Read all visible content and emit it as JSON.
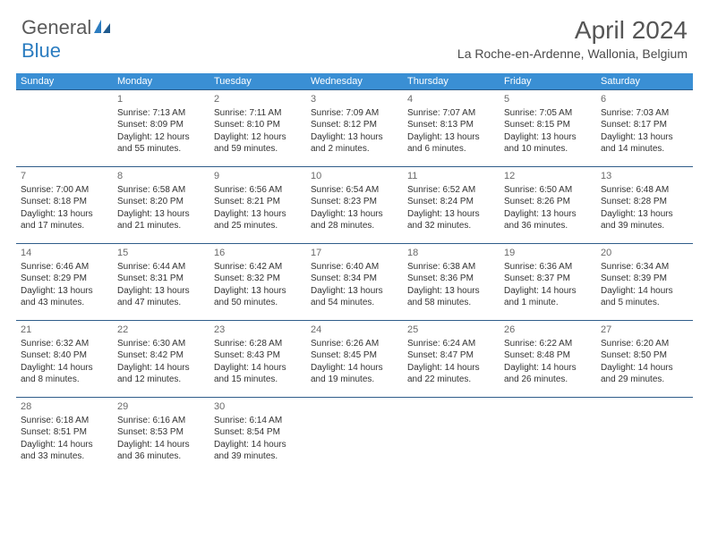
{
  "logo": {
    "text1": "General",
    "text2": "Blue"
  },
  "title": {
    "month": "April 2024",
    "location": "La Roche-en-Ardenne, Wallonia, Belgium"
  },
  "colors": {
    "header_bg": "#3a8fd4",
    "header_text": "#ffffff",
    "cell_border": "#2f5d8a",
    "body_text": "#333333",
    "daynum_text": "#6a6a6a",
    "title_text": "#555555",
    "logo_gray": "#5a5a5a",
    "logo_blue": "#2b7cc0",
    "background": "#ffffff"
  },
  "typography": {
    "title_fontsize": 28,
    "location_fontsize": 14,
    "header_fontsize": 11,
    "daynum_fontsize": 11,
    "cell_fontsize": 10,
    "logo_fontsize": 22
  },
  "days_of_week": [
    "Sunday",
    "Monday",
    "Tuesday",
    "Wednesday",
    "Thursday",
    "Friday",
    "Saturday"
  ],
  "weeks": [
    [
      null,
      {
        "n": "1",
        "sunrise": "Sunrise: 7:13 AM",
        "sunset": "Sunset: 8:09 PM",
        "day1": "Daylight: 12 hours",
        "day2": "and 55 minutes."
      },
      {
        "n": "2",
        "sunrise": "Sunrise: 7:11 AM",
        "sunset": "Sunset: 8:10 PM",
        "day1": "Daylight: 12 hours",
        "day2": "and 59 minutes."
      },
      {
        "n": "3",
        "sunrise": "Sunrise: 7:09 AM",
        "sunset": "Sunset: 8:12 PM",
        "day1": "Daylight: 13 hours",
        "day2": "and 2 minutes."
      },
      {
        "n": "4",
        "sunrise": "Sunrise: 7:07 AM",
        "sunset": "Sunset: 8:13 PM",
        "day1": "Daylight: 13 hours",
        "day2": "and 6 minutes."
      },
      {
        "n": "5",
        "sunrise": "Sunrise: 7:05 AM",
        "sunset": "Sunset: 8:15 PM",
        "day1": "Daylight: 13 hours",
        "day2": "and 10 minutes."
      },
      {
        "n": "6",
        "sunrise": "Sunrise: 7:03 AM",
        "sunset": "Sunset: 8:17 PM",
        "day1": "Daylight: 13 hours",
        "day2": "and 14 minutes."
      }
    ],
    [
      {
        "n": "7",
        "sunrise": "Sunrise: 7:00 AM",
        "sunset": "Sunset: 8:18 PM",
        "day1": "Daylight: 13 hours",
        "day2": "and 17 minutes."
      },
      {
        "n": "8",
        "sunrise": "Sunrise: 6:58 AM",
        "sunset": "Sunset: 8:20 PM",
        "day1": "Daylight: 13 hours",
        "day2": "and 21 minutes."
      },
      {
        "n": "9",
        "sunrise": "Sunrise: 6:56 AM",
        "sunset": "Sunset: 8:21 PM",
        "day1": "Daylight: 13 hours",
        "day2": "and 25 minutes."
      },
      {
        "n": "10",
        "sunrise": "Sunrise: 6:54 AM",
        "sunset": "Sunset: 8:23 PM",
        "day1": "Daylight: 13 hours",
        "day2": "and 28 minutes."
      },
      {
        "n": "11",
        "sunrise": "Sunrise: 6:52 AM",
        "sunset": "Sunset: 8:24 PM",
        "day1": "Daylight: 13 hours",
        "day2": "and 32 minutes."
      },
      {
        "n": "12",
        "sunrise": "Sunrise: 6:50 AM",
        "sunset": "Sunset: 8:26 PM",
        "day1": "Daylight: 13 hours",
        "day2": "and 36 minutes."
      },
      {
        "n": "13",
        "sunrise": "Sunrise: 6:48 AM",
        "sunset": "Sunset: 8:28 PM",
        "day1": "Daylight: 13 hours",
        "day2": "and 39 minutes."
      }
    ],
    [
      {
        "n": "14",
        "sunrise": "Sunrise: 6:46 AM",
        "sunset": "Sunset: 8:29 PM",
        "day1": "Daylight: 13 hours",
        "day2": "and 43 minutes."
      },
      {
        "n": "15",
        "sunrise": "Sunrise: 6:44 AM",
        "sunset": "Sunset: 8:31 PM",
        "day1": "Daylight: 13 hours",
        "day2": "and 47 minutes."
      },
      {
        "n": "16",
        "sunrise": "Sunrise: 6:42 AM",
        "sunset": "Sunset: 8:32 PM",
        "day1": "Daylight: 13 hours",
        "day2": "and 50 minutes."
      },
      {
        "n": "17",
        "sunrise": "Sunrise: 6:40 AM",
        "sunset": "Sunset: 8:34 PM",
        "day1": "Daylight: 13 hours",
        "day2": "and 54 minutes."
      },
      {
        "n": "18",
        "sunrise": "Sunrise: 6:38 AM",
        "sunset": "Sunset: 8:36 PM",
        "day1": "Daylight: 13 hours",
        "day2": "and 58 minutes."
      },
      {
        "n": "19",
        "sunrise": "Sunrise: 6:36 AM",
        "sunset": "Sunset: 8:37 PM",
        "day1": "Daylight: 14 hours",
        "day2": "and 1 minute."
      },
      {
        "n": "20",
        "sunrise": "Sunrise: 6:34 AM",
        "sunset": "Sunset: 8:39 PM",
        "day1": "Daylight: 14 hours",
        "day2": "and 5 minutes."
      }
    ],
    [
      {
        "n": "21",
        "sunrise": "Sunrise: 6:32 AM",
        "sunset": "Sunset: 8:40 PM",
        "day1": "Daylight: 14 hours",
        "day2": "and 8 minutes."
      },
      {
        "n": "22",
        "sunrise": "Sunrise: 6:30 AM",
        "sunset": "Sunset: 8:42 PM",
        "day1": "Daylight: 14 hours",
        "day2": "and 12 minutes."
      },
      {
        "n": "23",
        "sunrise": "Sunrise: 6:28 AM",
        "sunset": "Sunset: 8:43 PM",
        "day1": "Daylight: 14 hours",
        "day2": "and 15 minutes."
      },
      {
        "n": "24",
        "sunrise": "Sunrise: 6:26 AM",
        "sunset": "Sunset: 8:45 PM",
        "day1": "Daylight: 14 hours",
        "day2": "and 19 minutes."
      },
      {
        "n": "25",
        "sunrise": "Sunrise: 6:24 AM",
        "sunset": "Sunset: 8:47 PM",
        "day1": "Daylight: 14 hours",
        "day2": "and 22 minutes."
      },
      {
        "n": "26",
        "sunrise": "Sunrise: 6:22 AM",
        "sunset": "Sunset: 8:48 PM",
        "day1": "Daylight: 14 hours",
        "day2": "and 26 minutes."
      },
      {
        "n": "27",
        "sunrise": "Sunrise: 6:20 AM",
        "sunset": "Sunset: 8:50 PM",
        "day1": "Daylight: 14 hours",
        "day2": "and 29 minutes."
      }
    ],
    [
      {
        "n": "28",
        "sunrise": "Sunrise: 6:18 AM",
        "sunset": "Sunset: 8:51 PM",
        "day1": "Daylight: 14 hours",
        "day2": "and 33 minutes."
      },
      {
        "n": "29",
        "sunrise": "Sunrise: 6:16 AM",
        "sunset": "Sunset: 8:53 PM",
        "day1": "Daylight: 14 hours",
        "day2": "and 36 minutes."
      },
      {
        "n": "30",
        "sunrise": "Sunrise: 6:14 AM",
        "sunset": "Sunset: 8:54 PM",
        "day1": "Daylight: 14 hours",
        "day2": "and 39 minutes."
      },
      null,
      null,
      null,
      null
    ]
  ]
}
